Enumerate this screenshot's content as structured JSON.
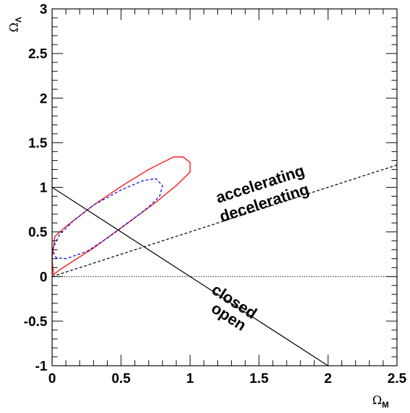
{
  "chart_data": {
    "type": "line",
    "title": "",
    "xlabel": {
      "symbol": "Ω",
      "subscript": "M"
    },
    "ylabel": {
      "symbol": "Ω",
      "subscript": "Λ"
    },
    "xlim": [
      0,
      2.5
    ],
    "ylim": [
      -1,
      3
    ],
    "grid": false,
    "xticks": [
      {
        "value": 0,
        "label": "0"
      },
      {
        "value": 0.5,
        "label": "0.5"
      },
      {
        "value": 1,
        "label": "1"
      },
      {
        "value": 1.5,
        "label": "1.5"
      },
      {
        "value": 2,
        "label": "2"
      },
      {
        "value": 2.5,
        "label": "2.5"
      }
    ],
    "yticks": [
      {
        "value": -1,
        "label": "-1"
      },
      {
        "value": -0.5,
        "label": "-0.5"
      },
      {
        "value": 0,
        "label": "0"
      },
      {
        "value": 0.5,
        "label": "0.5"
      },
      {
        "value": 1,
        "label": "1"
      },
      {
        "value": 1.5,
        "label": "1.5"
      },
      {
        "value": 2,
        "label": "2"
      },
      {
        "value": 2.5,
        "label": "2.5"
      },
      {
        "value": 3,
        "label": "3"
      }
    ],
    "series": [
      {
        "color": "#ff0000",
        "style": "solid",
        "x": [
          0.0,
          0.02,
          0.1,
          0.3,
          0.5,
          0.7,
          0.88,
          0.95,
          1.0,
          1.0,
          0.9,
          0.75,
          0.6,
          0.45,
          0.3,
          0.15,
          0.05,
          0.01,
          0.0
        ],
        "y": [
          0.2,
          0.45,
          0.56,
          0.8,
          1.01,
          1.2,
          1.34,
          1.34,
          1.28,
          1.17,
          1.02,
          0.83,
          0.66,
          0.49,
          0.32,
          0.17,
          0.07,
          0.02,
          0.2
        ]
      },
      {
        "color": "#0000ff",
        "style": "dashed",
        "x": [
          0.0,
          0.05,
          0.15,
          0.3,
          0.5,
          0.65,
          0.75,
          0.8,
          0.78,
          0.7,
          0.55,
          0.4,
          0.25,
          0.1,
          0.03,
          0.0
        ],
        "y": [
          0.3,
          0.46,
          0.62,
          0.8,
          0.97,
          1.07,
          1.1,
          1.02,
          0.9,
          0.78,
          0.6,
          0.43,
          0.28,
          0.2,
          0.21,
          0.3
        ]
      },
      {
        "color": "#000000",
        "style": "solid",
        "x": [
          0,
          2
        ],
        "y": [
          1,
          -1
        ]
      },
      {
        "color": "#000000",
        "style": "dashed",
        "x": [
          0,
          2.5
        ],
        "y": [
          0,
          1.25
        ]
      },
      {
        "color": "#000000",
        "style": "dotted",
        "x": [
          0,
          2.5
        ],
        "y": [
          0,
          0
        ]
      }
    ],
    "annotations": [
      {
        "text": "accelerating",
        "x": 1.52,
        "y": 0.98
      },
      {
        "text": "decelerating",
        "x": 1.55,
        "y": 0.77
      },
      {
        "text": "closed",
        "x": 1.3,
        "y": -0.33
      },
      {
        "text": "open",
        "x": 1.26,
        "y": -0.5
      }
    ]
  }
}
